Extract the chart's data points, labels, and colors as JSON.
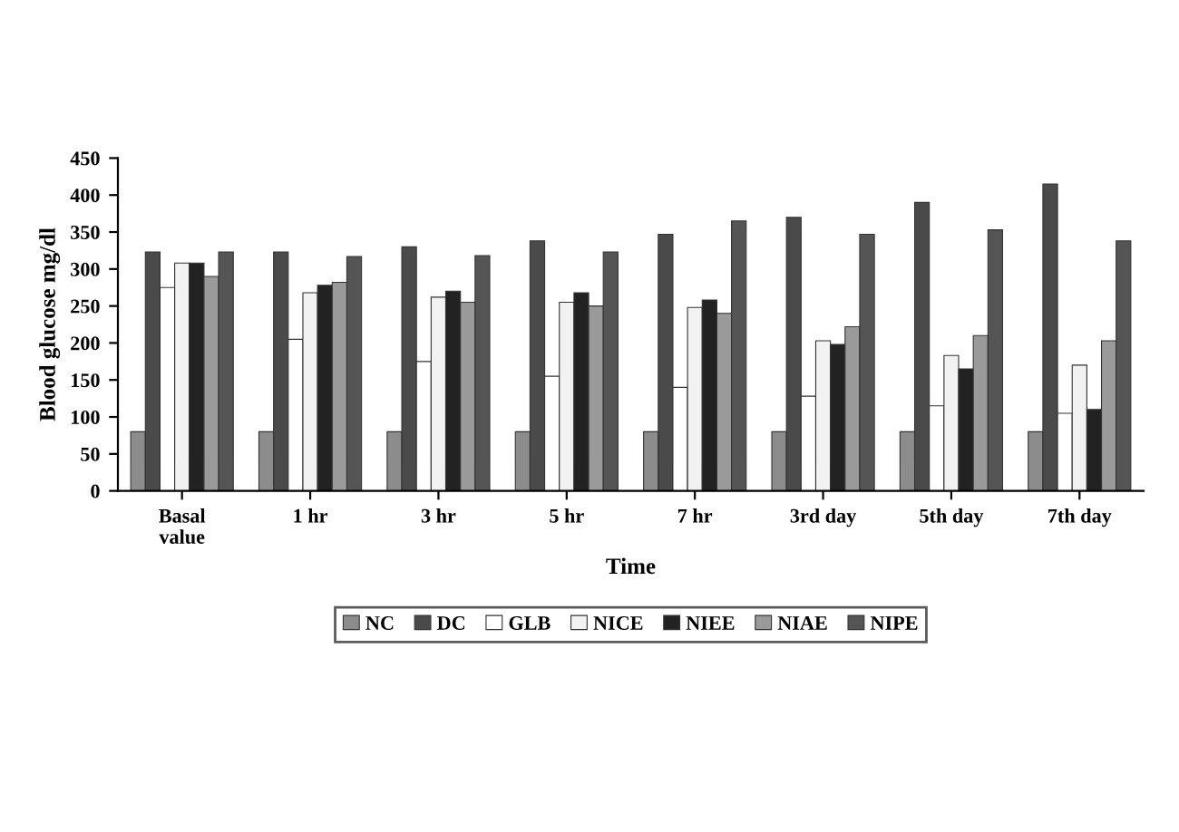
{
  "chart_data": {
    "type": "bar",
    "xlabel": "Time",
    "ylabel": "Blood glucose mg/dl",
    "categories": [
      "Basal\nvalue",
      "1 hr",
      "3 hr",
      "5 hr",
      "7 hr",
      "3rd day",
      "5th day",
      "7th day"
    ],
    "series": [
      {
        "name": "NC",
        "color": "#8c8c8c",
        "values": [
          80,
          80,
          80,
          80,
          80,
          80,
          80,
          80
        ]
      },
      {
        "name": "DC",
        "color": "#4a4a4a",
        "values": [
          323,
          323,
          330,
          338,
          347,
          370,
          390,
          415
        ]
      },
      {
        "name": "GLB",
        "color": "#ffffff",
        "values": [
          275,
          205,
          175,
          155,
          140,
          128,
          115,
          105
        ]
      },
      {
        "name": "NICE",
        "color": "#f2f2f2",
        "values": [
          308,
          268,
          262,
          255,
          248,
          203,
          183,
          170
        ]
      },
      {
        "name": "NIEE",
        "color": "#222222",
        "values": [
          308,
          278,
          270,
          268,
          258,
          198,
          165,
          110
        ]
      },
      {
        "name": "NIAE",
        "color": "#9a9a9a",
        "values": [
          290,
          282,
          255,
          250,
          240,
          222,
          210,
          203
        ]
      },
      {
        "name": "NIPE",
        "color": "#555555",
        "values": [
          323,
          317,
          318,
          323,
          365,
          347,
          353,
          338
        ]
      }
    ],
    "ylim": [
      0,
      450
    ],
    "yticks": [
      0,
      50,
      100,
      150,
      200,
      250,
      300,
      350,
      400,
      450
    ],
    "grid": false,
    "legend": "bottom"
  }
}
